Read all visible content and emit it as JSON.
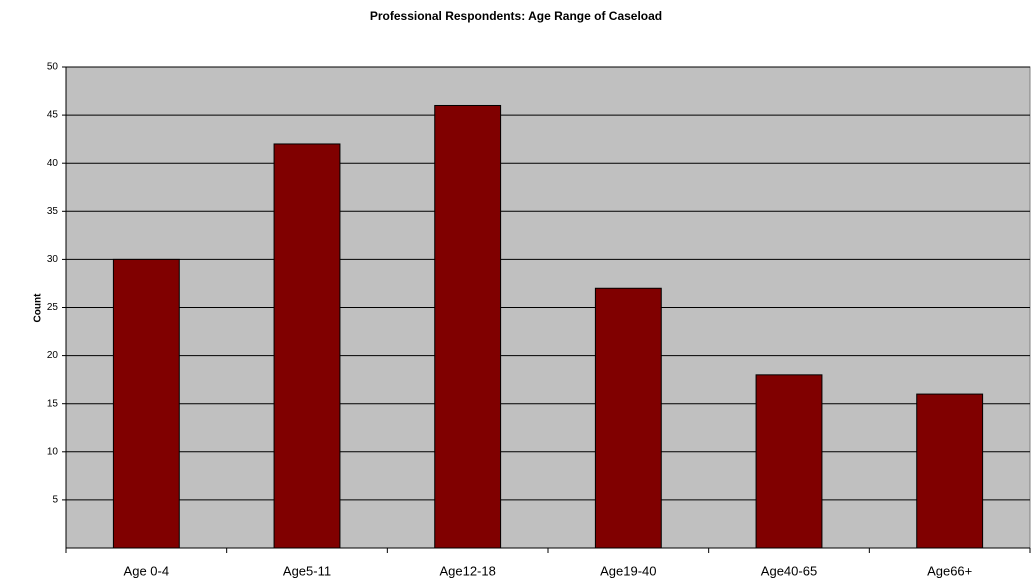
{
  "chart_data": {
    "type": "bar",
    "title": "Professional Respondents: Age Range of Caseload",
    "y_label": "Count",
    "categories": [
      "Age 0-4",
      "Age5-11",
      "Age12-18",
      "Age19-40",
      "Age40-65",
      "Age66+"
    ],
    "values": [
      30,
      42,
      46,
      27,
      18,
      16
    ],
    "color": "#800000",
    "ylim": [
      0,
      50
    ],
    "yticks": [
      5,
      10,
      15,
      20,
      25,
      30,
      35,
      40,
      45,
      50
    ],
    "grid": true
  }
}
